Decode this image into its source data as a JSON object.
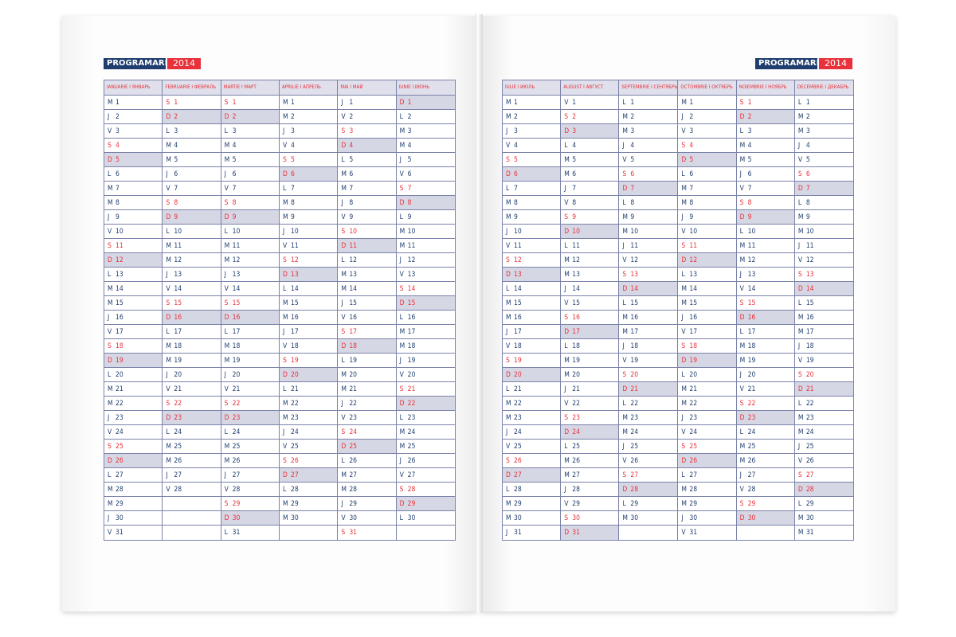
{
  "header": {
    "title": "PROGRAMARE",
    "year": "2014"
  },
  "pages": [
    {
      "side": "left",
      "months": [
        {
          "name": "IANUARIE I ЯНВАРЬ",
          "days": [
            "M",
            "J",
            "V",
            "S",
            "D",
            "L",
            "M",
            "M",
            "J",
            "V",
            "S",
            "D",
            "L",
            "M",
            "M",
            "J",
            "V",
            "S",
            "D",
            "L",
            "M",
            "M",
            "J",
            "V",
            "S",
            "D",
            "L",
            "M",
            "M",
            "J",
            "V"
          ]
        },
        {
          "name": "FEBRUARIE I ФЕВРАЛЬ",
          "days": [
            "S",
            "D",
            "L",
            "M",
            "M",
            "J",
            "V",
            "S",
            "D",
            "L",
            "M",
            "M",
            "J",
            "V",
            "S",
            "D",
            "L",
            "M",
            "M",
            "J",
            "V",
            "S",
            "D",
            "L",
            "M",
            "M",
            "J",
            "V"
          ]
        },
        {
          "name": "MARTIE I МАРТ",
          "days": [
            "S",
            "D",
            "L",
            "M",
            "M",
            "J",
            "V",
            "S",
            "D",
            "L",
            "M",
            "M",
            "J",
            "V",
            "S",
            "D",
            "L",
            "M",
            "M",
            "J",
            "V",
            "S",
            "D",
            "L",
            "M",
            "M",
            "J",
            "V",
            "S",
            "D",
            "L"
          ]
        },
        {
          "name": "APRILIE I АПРЕЛЬ",
          "days": [
            "M",
            "M",
            "J",
            "V",
            "S",
            "D",
            "L",
            "M",
            "M",
            "J",
            "V",
            "S",
            "D",
            "L",
            "M",
            "M",
            "J",
            "V",
            "S",
            "D",
            "L",
            "M",
            "M",
            "J",
            "V",
            "S",
            "D",
            "L",
            "M",
            "M"
          ]
        },
        {
          "name": "MAI I МАЙ",
          "days": [
            "J",
            "V",
            "S",
            "D",
            "L",
            "M",
            "M",
            "J",
            "V",
            "S",
            "D",
            "L",
            "M",
            "M",
            "J",
            "V",
            "S",
            "D",
            "L",
            "M",
            "M",
            "J",
            "V",
            "S",
            "D",
            "L",
            "M",
            "M",
            "J",
            "V",
            "S"
          ]
        },
        {
          "name": "IUNIE I ИЮНЬ",
          "days": [
            "D",
            "L",
            "M",
            "M",
            "J",
            "V",
            "S",
            "D",
            "L",
            "M",
            "M",
            "J",
            "V",
            "S",
            "D",
            "L",
            "M",
            "M",
            "J",
            "V",
            "S",
            "D",
            "L",
            "M",
            "M",
            "J",
            "V",
            "S",
            "D",
            "L"
          ]
        }
      ]
    },
    {
      "side": "right",
      "months": [
        {
          "name": "IULIE I ИЮЛЬ",
          "days": [
            "M",
            "M",
            "J",
            "V",
            "S",
            "D",
            "L",
            "M",
            "M",
            "J",
            "V",
            "S",
            "D",
            "L",
            "M",
            "M",
            "J",
            "V",
            "S",
            "D",
            "L",
            "M",
            "M",
            "J",
            "V",
            "S",
            "D",
            "L",
            "M",
            "M",
            "J"
          ]
        },
        {
          "name": "AUGUST I АВГУСТ",
          "days": [
            "V",
            "S",
            "D",
            "L",
            "M",
            "M",
            "J",
            "V",
            "S",
            "D",
            "L",
            "M",
            "M",
            "J",
            "V",
            "S",
            "D",
            "L",
            "M",
            "M",
            "J",
            "V",
            "S",
            "D",
            "L",
            "M",
            "M",
            "J",
            "V",
            "S",
            "D"
          ]
        },
        {
          "name": "SEPTEMBRIE I СЕНТЯБРЬ",
          "days": [
            "L",
            "M",
            "M",
            "J",
            "V",
            "S",
            "D",
            "L",
            "M",
            "M",
            "J",
            "V",
            "S",
            "D",
            "L",
            "M",
            "M",
            "J",
            "V",
            "S",
            "D",
            "L",
            "M",
            "M",
            "J",
            "V",
            "S",
            "D",
            "L",
            "M"
          ]
        },
        {
          "name": "OCTOMBRIE I ОКТЯБРЬ",
          "days": [
            "M",
            "J",
            "V",
            "S",
            "D",
            "L",
            "M",
            "M",
            "J",
            "V",
            "S",
            "D",
            "L",
            "M",
            "M",
            "J",
            "V",
            "S",
            "D",
            "L",
            "M",
            "M",
            "J",
            "V",
            "S",
            "D",
            "L",
            "M",
            "M",
            "J",
            "V"
          ]
        },
        {
          "name": "NOIEMBRIE I НОЯБРЬ",
          "days": [
            "S",
            "D",
            "L",
            "M",
            "M",
            "J",
            "V",
            "S",
            "D",
            "L",
            "M",
            "M",
            "J",
            "V",
            "S",
            "D",
            "L",
            "M",
            "M",
            "J",
            "V",
            "S",
            "D",
            "L",
            "M",
            "M",
            "J",
            "V",
            "S",
            "D"
          ]
        },
        {
          "name": "DECEMBRIE I ДЕКАБРЬ",
          "days": [
            "L",
            "M",
            "M",
            "J",
            "V",
            "S",
            "D",
            "L",
            "M",
            "M",
            "J",
            "V",
            "S",
            "D",
            "L",
            "M",
            "M",
            "J",
            "V",
            "S",
            "D",
            "L",
            "M",
            "M",
            "J",
            "V",
            "S",
            "D",
            "L",
            "M",
            "M"
          ]
        }
      ]
    }
  ],
  "colors": {
    "navy": "#1f3d6e",
    "red": "#e8313a",
    "sunday_fill": "#d6d7e5",
    "header_fill": "#dfe0ec",
    "grid_line": "#7b82a8"
  }
}
